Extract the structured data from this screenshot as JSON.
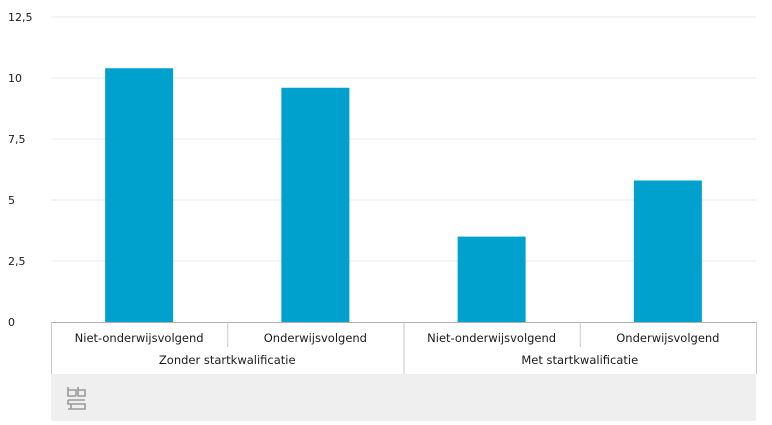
{
  "chart_data": {
    "type": "bar",
    "groups": [
      {
        "label": "Zonder startkwalificatie",
        "categories": [
          "Niet-onderwijsvolgend",
          "Onderwijsvolgend"
        ]
      },
      {
        "label": "Met startkwalificatie",
        "categories": [
          "Niet-onderwijsvolgend",
          "Onderwijsvolgend"
        ]
      }
    ],
    "categories": [
      "Niet-onderwijsvolgend",
      "Onderwijsvolgend",
      "Niet-onderwijsvolgend",
      "Onderwijsvolgend"
    ],
    "values": [
      10.4,
      9.6,
      3.5,
      5.8
    ],
    "ylim": [
      0,
      12.5
    ],
    "yticks": [
      0,
      2.5,
      5,
      7.5,
      10,
      12.5
    ],
    "ytick_labels": [
      "0",
      "2,5",
      "5",
      "7,5",
      "10",
      "12,5"
    ],
    "bar_color": "#00a1cd",
    "grid": true,
    "title": "",
    "xlabel": "",
    "ylabel": ""
  },
  "footer": {
    "logo_icon": "cbs-logo-icon",
    "background": "#efefef"
  }
}
